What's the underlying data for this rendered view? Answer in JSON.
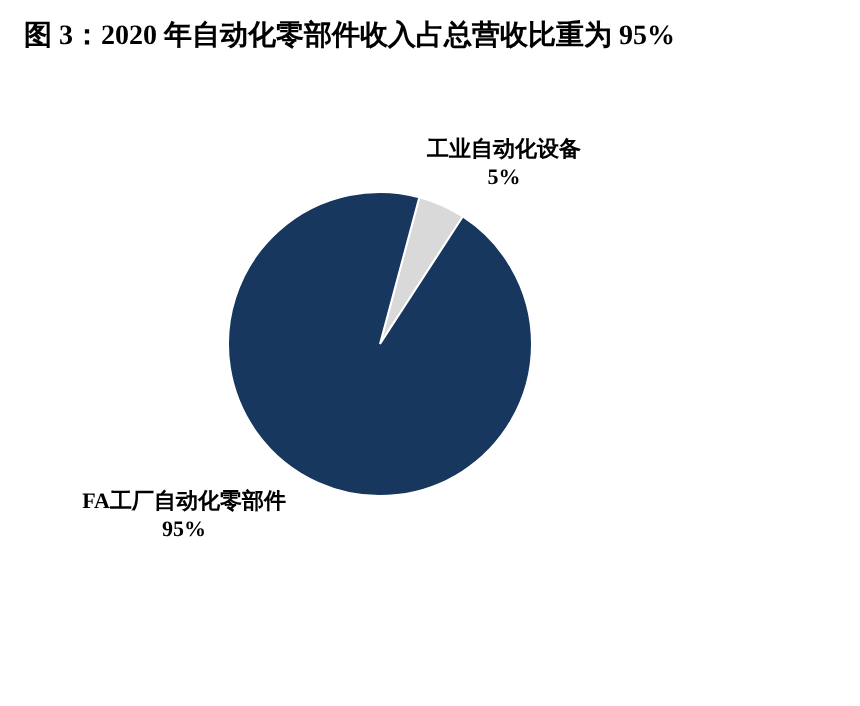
{
  "chart_data": {
    "type": "pie",
    "title": "图 3：2020 年自动化零部件收入占总营收比重为 95%",
    "categories": [
      "工业自动化设备",
      "FA工厂自动化零部件"
    ],
    "values": [
      5,
      95
    ],
    "colors": [
      "#d9d9d9",
      "#17375e"
    ],
    "value_labels": [
      "5%",
      "95%"
    ],
    "legend": false
  }
}
